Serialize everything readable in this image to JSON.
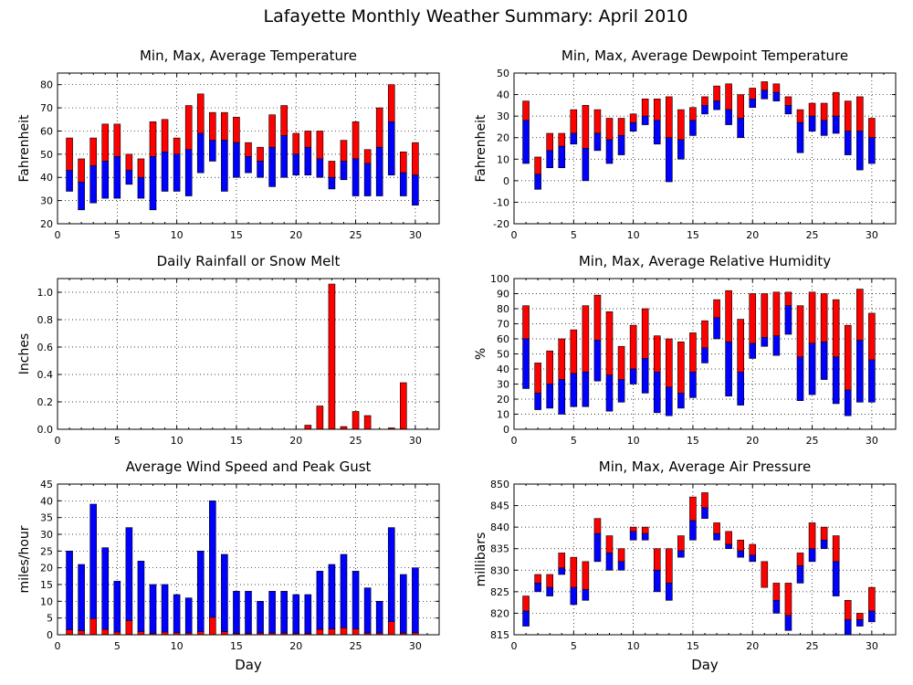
{
  "page_title": "Lafayette Monthly Weather Summary: April 2010",
  "colors": {
    "max": "#ff0000",
    "min": "#0000ff"
  },
  "chart_data": [
    {
      "type": "bar",
      "id": "temperature",
      "title": "Min, Max, Average Temperature",
      "xlabel": "",
      "ylabel": "Fahrenheit",
      "xlim": [
        0,
        32
      ],
      "ylim": [
        20,
        85
      ],
      "xticks": [
        0,
        5,
        10,
        15,
        20,
        25,
        30
      ],
      "yticks": [
        20,
        30,
        40,
        50,
        60,
        70,
        80
      ],
      "grid": true,
      "x": [
        1,
        2,
        3,
        4,
        5,
        6,
        7,
        8,
        9,
        10,
        11,
        12,
        13,
        14,
        15,
        16,
        17,
        18,
        19,
        20,
        21,
        22,
        23,
        24,
        25,
        26,
        27,
        28,
        29,
        30
      ],
      "min": [
        34,
        26,
        29,
        31,
        31,
        37,
        31,
        26,
        34,
        34,
        32,
        42,
        47,
        34,
        40,
        42,
        40,
        36,
        40,
        41,
        41,
        40,
        35,
        39,
        32,
        32,
        32,
        41,
        32,
        28
      ],
      "avg": [
        43,
        38,
        45,
        47,
        49,
        43,
        40,
        49,
        51,
        50,
        52,
        59,
        56,
        56,
        55,
        49,
        47,
        53,
        58,
        50,
        53,
        48,
        40,
        47,
        48,
        46,
        53,
        64,
        42,
        41
      ],
      "max": [
        57,
        48,
        57,
        63,
        63,
        50,
        48,
        64,
        65,
        57,
        71,
        76,
        68,
        68,
        66,
        55,
        53,
        67,
        71,
        59,
        60,
        60,
        47,
        56,
        64,
        52,
        70,
        80,
        51,
        55
      ]
    },
    {
      "type": "bar",
      "id": "dewpoint",
      "title": "Min, Max, Average Dewpoint Temperature",
      "xlabel": "",
      "ylabel": "Fahrenheit",
      "xlim": [
        0,
        32
      ],
      "ylim": [
        -20,
        50
      ],
      "xticks": [
        0,
        5,
        10,
        15,
        20,
        25,
        30
      ],
      "yticks": [
        -20,
        -10,
        0,
        10,
        20,
        30,
        40,
        50
      ],
      "grid": true,
      "x": [
        1,
        2,
        3,
        4,
        5,
        6,
        7,
        8,
        9,
        10,
        11,
        12,
        13,
        14,
        15,
        16,
        17,
        18,
        19,
        20,
        21,
        22,
        23,
        24,
        25,
        26,
        27,
        28,
        29,
        30
      ],
      "min": [
        8,
        -4,
        6,
        6,
        17,
        0,
        14,
        8,
        12,
        23,
        26,
        17,
        -0.5,
        10,
        21,
        31,
        33,
        26,
        20,
        34,
        38,
        37,
        31,
        13,
        23,
        21,
        22,
        12,
        5,
        8
      ],
      "avg": [
        28,
        3,
        14,
        16,
        22,
        15,
        22,
        19,
        21,
        27,
        30,
        28,
        20,
        19,
        28,
        35,
        37,
        33,
        29,
        38,
        42,
        41,
        35,
        27,
        30,
        28,
        30,
        23,
        23,
        20
      ],
      "max": [
        37,
        11,
        22,
        22,
        33,
        35,
        33,
        29,
        29,
        31,
        38,
        38,
        39,
        33,
        34,
        39,
        44,
        45,
        40,
        43,
        46,
        45,
        39,
        33,
        36,
        36,
        41,
        37,
        39,
        29
      ]
    },
    {
      "type": "bar",
      "id": "rainfall",
      "title": "Daily Rainfall or Snow Melt",
      "xlabel": "",
      "ylabel": "Inches",
      "xlim": [
        0,
        32
      ],
      "ylim": [
        0,
        1.1
      ],
      "xticks": [
        0,
        5,
        10,
        15,
        20,
        25,
        30
      ],
      "yticks": [
        0.0,
        0.2,
        0.4,
        0.6,
        0.8,
        1.0
      ],
      "ytick_labels": [
        "0.0",
        "0.2",
        "0.4",
        "0.6",
        "0.8",
        "1.0"
      ],
      "grid": true,
      "x": [
        1,
        2,
        3,
        4,
        5,
        6,
        7,
        8,
        9,
        10,
        11,
        12,
        13,
        14,
        15,
        16,
        17,
        18,
        19,
        20,
        21,
        22,
        23,
        24,
        25,
        26,
        27,
        28,
        29,
        30
      ],
      "values": [
        0,
        0,
        0,
        0,
        0,
        0,
        0,
        0,
        0,
        0,
        0,
        0,
        0,
        0,
        0,
        0,
        0,
        0,
        0,
        0,
        0.03,
        0.17,
        1.06,
        0.02,
        0.13,
        0.1,
        0,
        0.01,
        0.34,
        0
      ]
    },
    {
      "type": "bar",
      "id": "humidity",
      "title": "Min, Max, Average Relative Humidity",
      "xlabel": "",
      "ylabel": "%",
      "xlim": [
        0,
        32
      ],
      "ylim": [
        0,
        100
      ],
      "xticks": [
        0,
        5,
        10,
        15,
        20,
        25,
        30
      ],
      "yticks": [
        0,
        10,
        20,
        30,
        40,
        50,
        60,
        70,
        80,
        90,
        100
      ],
      "grid": true,
      "x": [
        1,
        2,
        3,
        4,
        5,
        6,
        7,
        8,
        9,
        10,
        11,
        12,
        13,
        14,
        15,
        16,
        17,
        18,
        19,
        20,
        21,
        22,
        23,
        24,
        25,
        26,
        27,
        28,
        29,
        30
      ],
      "min": [
        27,
        13,
        14,
        10,
        15,
        15,
        32,
        12,
        18,
        30,
        24,
        11,
        9,
        14,
        21,
        44,
        60,
        22,
        16,
        47,
        55,
        49,
        63,
        19,
        23,
        33,
        17,
        9,
        18,
        18
      ],
      "avg": [
        60,
        24,
        30,
        33,
        37,
        38,
        59,
        36,
        33,
        40,
        47,
        38,
        28,
        24,
        38,
        54,
        74,
        58,
        38,
        57,
        61,
        62,
        82,
        48,
        57,
        58,
        48,
        26,
        59,
        46
      ],
      "max": [
        82,
        44,
        52,
        60,
        66,
        82,
        89,
        78,
        55,
        69,
        80,
        62,
        60,
        58,
        64,
        72,
        86,
        92,
        73,
        90,
        90,
        91,
        91,
        82,
        91,
        90,
        86,
        69,
        93,
        77
      ]
    },
    {
      "type": "bar",
      "id": "wind",
      "title": "Average Wind Speed and Peak Gust",
      "xlabel": "Day",
      "ylabel": "miles/hour",
      "xlim": [
        0,
        32
      ],
      "ylim": [
        0,
        45
      ],
      "xticks": [
        0,
        5,
        10,
        15,
        20,
        25,
        30
      ],
      "yticks": [
        0,
        5,
        10,
        15,
        20,
        25,
        30,
        35,
        40,
        45
      ],
      "grid": true,
      "x": [
        1,
        2,
        3,
        4,
        5,
        6,
        7,
        8,
        9,
        10,
        11,
        12,
        13,
        14,
        15,
        16,
        17,
        18,
        19,
        20,
        21,
        22,
        23,
        24,
        25,
        26,
        27,
        28,
        29,
        30
      ],
      "peak_gust": [
        25,
        21,
        39,
        26,
        16,
        32,
        22,
        15,
        15,
        12,
        11,
        25,
        40,
        24,
        13,
        13,
        10,
        13,
        13,
        12,
        12,
        19,
        21,
        24,
        19,
        14,
        10,
        32,
        18,
        20
      ],
      "avg_speed": [
        1.5,
        1.2,
        4.8,
        1.6,
        0.8,
        4.2,
        0.9,
        0.4,
        0.8,
        0.6,
        0.5,
        0.9,
        5.2,
        0.9,
        0.4,
        0.4,
        0.5,
        0.5,
        0.5,
        0.4,
        0.4,
        1.6,
        1.7,
        2.1,
        1.7,
        0.5,
        0.5,
        3.9,
        0.5,
        0.6
      ]
    },
    {
      "type": "bar",
      "id": "pressure",
      "title": "Min, Max, Average Air Pressure",
      "xlabel": "Day",
      "ylabel": "millibars",
      "xlim": [
        0,
        32
      ],
      "ylim": [
        815,
        850
      ],
      "xticks": [
        0,
        5,
        10,
        15,
        20,
        25,
        30
      ],
      "yticks": [
        815,
        820,
        825,
        830,
        835,
        840,
        845,
        850
      ],
      "grid": true,
      "x": [
        1,
        2,
        3,
        4,
        5,
        6,
        7,
        8,
        9,
        10,
        11,
        12,
        13,
        14,
        15,
        16,
        17,
        18,
        19,
        20,
        21,
        22,
        23,
        24,
        25,
        26,
        27,
        28,
        29,
        30
      ],
      "min": [
        817,
        825,
        824,
        829,
        822,
        823,
        832,
        830,
        830,
        837,
        837,
        825,
        823,
        833,
        837,
        842,
        837,
        835,
        833,
        832,
        828,
        820,
        816,
        827,
        832,
        835,
        824,
        815,
        817,
        818
      ],
      "avg": [
        820.5,
        827,
        826,
        830.5,
        826,
        825.5,
        838.5,
        834,
        832,
        839,
        838.5,
        830,
        827,
        834.5,
        841.5,
        844.5,
        838.5,
        836,
        834.5,
        833.5,
        826,
        823,
        819.5,
        831,
        835,
        837,
        832,
        818.5,
        818.5,
        820.5
      ],
      "max": [
        824,
        829,
        829,
        834,
        833,
        832,
        842,
        838,
        835,
        840,
        840,
        835,
        835,
        838,
        847,
        848,
        841,
        839,
        837,
        836,
        832,
        827,
        827,
        834,
        841,
        840,
        838,
        823,
        820,
        826
      ]
    }
  ]
}
